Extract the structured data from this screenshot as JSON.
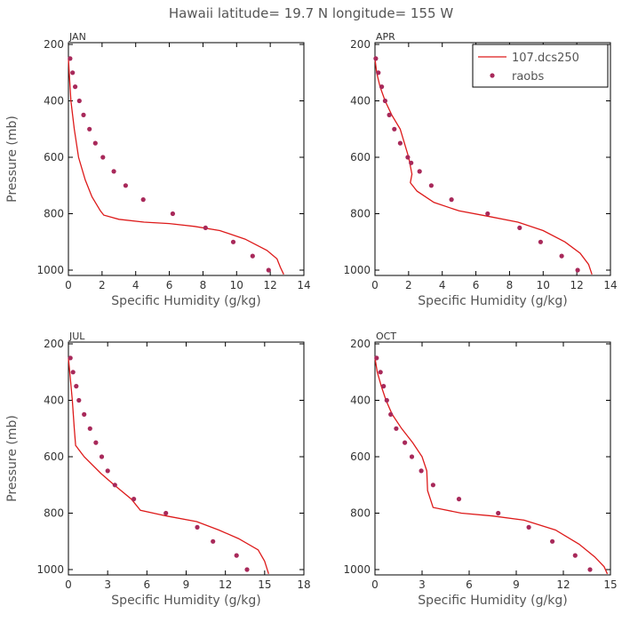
{
  "figure_title": "Hawaii  latitude= 19.7 N longitude= 155 W",
  "colors": {
    "model": "#dd1a1a",
    "obs": "#a8295a",
    "axis": "#000000",
    "text": "#555555"
  },
  "legend": {
    "model_label": "107.dcs250",
    "obs_label": "raobs",
    "placement": "top-right of APR panel"
  },
  "chart_data": [
    {
      "type": "line",
      "panel": "JAN",
      "xlabel": "Specific Humidity (g/kg)",
      "ylabel": "Pressure (mb)",
      "xlim": [
        0,
        14
      ],
      "xticks": [
        0,
        2,
        4,
        6,
        8,
        10,
        12,
        14
      ],
      "ylim": [
        1000,
        200
      ],
      "yticks": [
        200,
        400,
        600,
        800,
        1000
      ],
      "series": [
        {
          "name": "107.dcs250",
          "kind": "line",
          "x": [
            0.0,
            0.05,
            0.15,
            0.35,
            0.6,
            1.0,
            1.4,
            1.9,
            2.1,
            3.0,
            4.5,
            6.0,
            7.5,
            9.0,
            10.5,
            11.8,
            12.4,
            12.6,
            12.8
          ],
          "y": [
            250,
            300,
            400,
            500,
            600,
            680,
            740,
            790,
            805,
            820,
            830,
            835,
            845,
            860,
            890,
            930,
            960,
            990,
            1015
          ]
        },
        {
          "name": "raobs",
          "kind": "points",
          "x": [
            0.1,
            0.25,
            0.4,
            0.65,
            0.9,
            1.25,
            1.6,
            2.05,
            2.7,
            3.4,
            4.45,
            6.2,
            8.15,
            9.8,
            10.95,
            11.9
          ],
          "y": [
            250,
            300,
            350,
            400,
            450,
            500,
            550,
            600,
            650,
            700,
            750,
            800,
            850,
            900,
            950,
            1000
          ]
        }
      ]
    },
    {
      "type": "line",
      "panel": "APR",
      "xlabel": "Specific Humidity (g/kg)",
      "ylabel": "",
      "xlim": [
        0,
        14
      ],
      "xticks": [
        0,
        2,
        4,
        6,
        8,
        10,
        12,
        14
      ],
      "ylim": [
        1000,
        200
      ],
      "yticks": [
        200,
        400,
        600,
        800,
        1000
      ],
      "series": [
        {
          "name": "107.dcs250",
          "kind": "line",
          "x": [
            0.0,
            0.1,
            0.3,
            0.6,
            1.0,
            1.5,
            2.0,
            2.2,
            2.1,
            2.5,
            3.5,
            5.0,
            6.8,
            8.5,
            10.0,
            11.3,
            12.2,
            12.7,
            12.9
          ],
          "y": [
            250,
            300,
            350,
            400,
            450,
            500,
            600,
            660,
            690,
            720,
            760,
            790,
            810,
            830,
            860,
            900,
            940,
            980,
            1015
          ]
        },
        {
          "name": "raobs",
          "kind": "points",
          "x": [
            0.05,
            0.2,
            0.4,
            0.6,
            0.85,
            1.15,
            1.5,
            1.95,
            2.15,
            2.65,
            3.35,
            4.55,
            6.7,
            8.6,
            9.85,
            11.1,
            12.05
          ],
          "y": [
            250,
            300,
            350,
            400,
            450,
            500,
            550,
            600,
            620,
            650,
            700,
            750,
            800,
            850,
            900,
            950,
            1000
          ]
        }
      ]
    },
    {
      "type": "line",
      "panel": "JUL",
      "xlabel": "Specific Humidity (g/kg)",
      "ylabel": "Pressure (mb)",
      "xlim": [
        0,
        18
      ],
      "xticks": [
        0,
        3,
        6,
        9,
        12,
        15,
        18
      ],
      "ylim": [
        1000,
        200
      ],
      "yticks": [
        200,
        400,
        600,
        800,
        1000
      ],
      "series": [
        {
          "name": "107.dcs250",
          "kind": "line",
          "x": [
            0.0,
            0.1,
            0.3,
            0.45,
            0.55,
            1.2,
            2.5,
            3.5,
            4.8,
            5.5,
            7.5,
            9.8,
            11.5,
            13.0,
            14.5,
            15.0,
            15.3
          ],
          "y": [
            250,
            300,
            400,
            500,
            560,
            600,
            660,
            700,
            750,
            790,
            810,
            830,
            860,
            890,
            930,
            970,
            1015
          ]
        },
        {
          "name": "raobs",
          "kind": "points",
          "x": [
            0.15,
            0.35,
            0.6,
            0.8,
            1.2,
            1.65,
            2.1,
            2.55,
            3.0,
            3.55,
            5.0,
            7.45,
            9.85,
            11.05,
            12.85,
            13.65
          ],
          "y": [
            250,
            300,
            350,
            400,
            450,
            500,
            550,
            600,
            650,
            700,
            750,
            800,
            850,
            900,
            950,
            1000
          ]
        }
      ]
    },
    {
      "type": "line",
      "panel": "OCT",
      "xlabel": "Specific Humidity (g/kg)",
      "ylabel": "",
      "xlim": [
        0,
        15
      ],
      "xticks": [
        0,
        3,
        6,
        9,
        12,
        15
      ],
      "ylim": [
        1000,
        200
      ],
      "yticks": [
        200,
        400,
        600,
        800,
        1000
      ],
      "series": [
        {
          "name": "107.dcs250",
          "kind": "line",
          "x": [
            0.0,
            0.15,
            0.4,
            0.7,
            1.1,
            1.7,
            2.4,
            3.0,
            3.3,
            3.35,
            3.7,
            5.5,
            7.5,
            9.5,
            11.5,
            13.0,
            14.0,
            14.6,
            14.8
          ],
          "y": [
            250,
            300,
            350,
            400,
            450,
            500,
            550,
            600,
            650,
            720,
            780,
            800,
            810,
            825,
            860,
            910,
            955,
            990,
            1015
          ]
        },
        {
          "name": "raobs",
          "kind": "points",
          "x": [
            0.1,
            0.35,
            0.55,
            0.75,
            1.0,
            1.35,
            1.9,
            2.35,
            2.95,
            3.7,
            5.35,
            7.85,
            9.8,
            11.3,
            12.75,
            13.7
          ],
          "y": [
            250,
            300,
            350,
            400,
            450,
            500,
            550,
            600,
            650,
            700,
            750,
            800,
            850,
            900,
            950,
            1000
          ]
        }
      ]
    }
  ]
}
